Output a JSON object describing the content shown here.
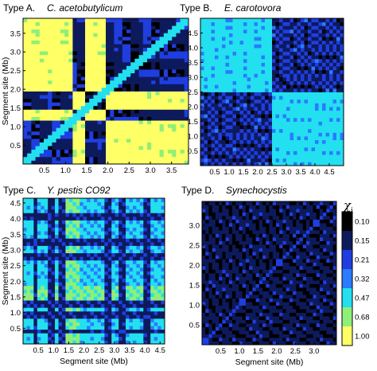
{
  "chart_data": [
    {
      "type": "heatmap",
      "title_type": "Type A.",
      "title_organism": "C. acetobutylicum",
      "xlabel": "",
      "ylabel": "Segment site (Mb)",
      "xlim": [
        0,
        3.9
      ],
      "ylim": [
        0,
        3.9
      ],
      "xticks": [
        "0.5",
        "1.0",
        "1.5",
        "2.0",
        "2.5",
        "3.0",
        "3.5"
      ],
      "yticks": [
        "0.5",
        "1.0",
        "1.5",
        "2.0",
        "2.5",
        "3.0",
        "3.5"
      ],
      "xtick_values": [
        0.5,
        1.0,
        1.5,
        2.0,
        2.5,
        3.0,
        3.5
      ],
      "ytick_values": [
        0.5,
        1.0,
        1.5,
        2.0,
        2.5,
        3.0,
        3.5
      ],
      "block_pattern": "two domains split at 1.95 Mb with a small band at 1.15-1.45 Mb; same-domain pairs high (chi 0.10-0.21), cross-domain pairs low (chi ~1.00)",
      "domain_breaks_mb": [
        1.15,
        1.45,
        1.95
      ]
    },
    {
      "type": "heatmap",
      "title_type": "Type B.",
      "title_organism": "E. carotovora",
      "xlabel": "",
      "ylabel": "",
      "xlim": [
        0,
        5.0
      ],
      "ylim": [
        0,
        5.0
      ],
      "xticks": [
        "0.5",
        "1.0",
        "1.5",
        "2.0",
        "2.5",
        "3.0",
        "3.5",
        "4.0",
        "4.5"
      ],
      "yticks": [
        "0.5",
        "1.0",
        "1.5",
        "2.0",
        "2.5",
        "3.0",
        "3.5",
        "4.0",
        "4.5"
      ],
      "xtick_values": [
        0.5,
        1.0,
        1.5,
        2.0,
        2.5,
        3.0,
        3.5,
        4.0,
        4.5
      ],
      "ytick_values": [
        0.5,
        1.0,
        1.5,
        2.0,
        2.5,
        3.0,
        3.5,
        4.0,
        4.5
      ],
      "block_pattern": "two domains split at 2.5 Mb; same-domain pairs high (chi 0.10-0.21), cross-domain pairs mid (chi ~0.47)",
      "domain_breaks_mb": [
        2.5
      ]
    },
    {
      "type": "heatmap",
      "title_type": "Type C.",
      "title_organism": "Y. pestis CO92",
      "xlabel": "Segment site (Mb)",
      "ylabel": "Segment site (Mb)",
      "xlim": [
        0,
        4.65
      ],
      "ylim": [
        0,
        4.65
      ],
      "xticks": [
        "0.5",
        "1.0",
        "1.5",
        "2.0",
        "2.5",
        "3.0",
        "3.5",
        "4.0",
        "4.5"
      ],
      "yticks": [
        "0.5",
        "1.0",
        "1.5",
        "2.0",
        "2.5",
        "3.0",
        "3.5",
        "4.0",
        "4.5"
      ],
      "xtick_values": [
        0.5,
        1.0,
        1.5,
        2.0,
        2.5,
        3.0,
        3.5,
        4.0,
        4.5
      ],
      "ytick_values": [
        0.5,
        1.0,
        1.5,
        2.0,
        2.5,
        3.0,
        3.5,
        4.0,
        4.5
      ],
      "block_pattern": "grid of mid-level blocks (chi ~0.32-0.47) crossed by high-similarity bands (chi ~0.15) at several segment sites",
      "band_sites_mb": [
        0.4,
        0.95,
        1.3,
        2.8,
        3.25,
        4.05
      ]
    },
    {
      "type": "heatmap",
      "title_type": "Type D.",
      "title_organism": "Synechocystis",
      "xlabel": "Segment site (Mb)",
      "ylabel": "",
      "xlim": [
        0,
        3.6
      ],
      "ylim": [
        0,
        3.6
      ],
      "xticks": [
        "0.5",
        "1.0",
        "1.5",
        "2.0",
        "2.5",
        "3.0"
      ],
      "yticks": [
        "0.5",
        "1.0",
        "1.5",
        "2.0",
        "2.5",
        "3.0"
      ],
      "xtick_values": [
        0.5,
        1.0,
        1.5,
        2.0,
        2.5,
        3.0
      ],
      "ytick_values": [
        0.5,
        1.0,
        1.5,
        2.0,
        2.5,
        3.0
      ],
      "block_pattern": "nearly uniform high similarity (chi 0.10-0.21) with no domain structure"
    }
  ],
  "colorbar": {
    "label": "χ",
    "label_subscript": "i",
    "levels": [
      "0.10",
      "0.15",
      "0.21",
      "0.32",
      "0.47",
      "0.68",
      "1.00"
    ],
    "level_values": [
      0.1,
      0.15,
      0.21,
      0.32,
      0.47,
      0.68,
      1.0
    ],
    "colors": [
      "#000000",
      "#0d1a5c",
      "#1f3ee0",
      "#2a7bff",
      "#22e0ef",
      "#8fef78",
      "#ffff66"
    ]
  }
}
